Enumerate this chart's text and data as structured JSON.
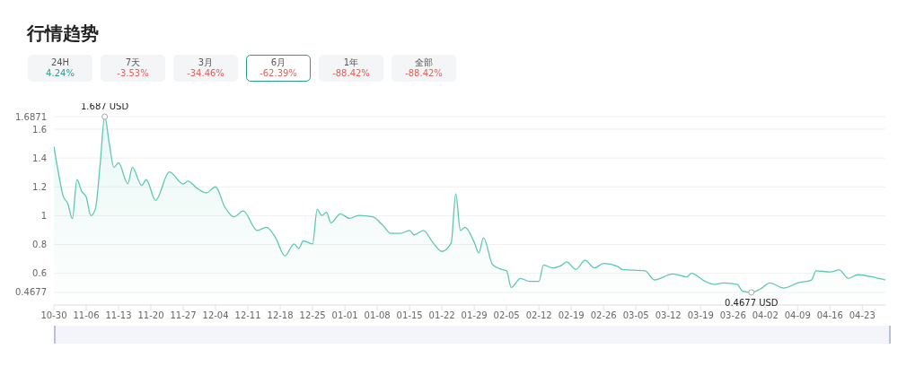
{
  "chart_data": {
    "type": "area",
    "title": "行情趋势",
    "color": "#5cc8b4",
    "categories": [
      "10-30",
      null,
      null,
      null,
      null,
      null,
      null,
      "11-06",
      null,
      null,
      null,
      null,
      null,
      null,
      "11-13",
      null,
      null,
      null,
      null,
      null,
      null,
      "11-20",
      null,
      null,
      null,
      null,
      null,
      null,
      "11-27",
      null,
      null,
      null,
      null,
      null,
      null,
      "12-04",
      null,
      null,
      null,
      null,
      null,
      null,
      "12-11",
      null,
      null,
      null,
      null,
      null,
      null,
      "12-18",
      null,
      null,
      null,
      null,
      null,
      null,
      "12-25",
      null,
      null,
      null,
      null,
      null,
      null,
      "01-01",
      null,
      null,
      null,
      null,
      null,
      null,
      "01-08",
      null,
      null,
      null,
      null,
      null,
      null,
      "01-15",
      null,
      null,
      null,
      null,
      null,
      null,
      "01-22",
      null,
      null,
      null,
      null,
      null,
      null,
      "01-29",
      null,
      null,
      null,
      null,
      null,
      null,
      "02-05",
      null,
      null,
      null,
      null,
      null,
      null,
      "02-12",
      null,
      null,
      null,
      null,
      null,
      null,
      "02-19",
      null,
      null,
      null,
      null,
      null,
      null,
      "02-26",
      null,
      null,
      null,
      null,
      null,
      null,
      "03-05",
      null,
      null,
      null,
      null,
      null,
      null,
      "03-12",
      null,
      null,
      null,
      null,
      null,
      null,
      "03-19",
      null,
      null,
      null,
      null,
      null,
      null,
      "03-26",
      null,
      null,
      null,
      null,
      null,
      null,
      "04-02",
      null,
      null,
      null,
      null,
      null,
      null,
      "04-09",
      null,
      null,
      null,
      null,
      null,
      null,
      "04-16",
      null,
      null,
      null,
      null,
      null,
      null,
      "04-23",
      null,
      null,
      null,
      null,
      null
    ],
    "values": [
      1.481,
      1.294,
      1.137,
      1.085,
      0.98,
      1.25,
      1.17,
      1.13,
      1.0,
      1.05,
      1.35,
      1.687,
      1.5,
      1.335,
      1.367,
      null,
      1.221,
      1.335,
      null,
      1.21,
      1.25,
      null,
      1.106,
      null,
      null,
      1.304,
      null,
      null,
      1.22,
      1.24,
      null,
      1.19,
      null,
      1.158,
      null,
      1.2,
      null,
      1.06,
      null,
      0.992,
      null,
      1.033,
      null,
      null,
      0.898,
      null,
      0.919,
      null,
      0.846,
      null,
      0.721,
      null,
      0.804,
      0.773,
      0.825,
      null,
      0.804,
      1.044,
      1.002,
      1.023,
      0.95,
      null,
      1.013,
      null,
      0.981,
      null,
      1.002,
      null,
      null,
      0.992,
      null,
      0.94,
      null,
      0.877,
      null,
      0.877,
      null,
      0.898,
      0.867,
      null,
      0.898,
      null,
      0.815,
      null,
      0.752,
      null,
      0.81,
      1.152,
      0.898,
      0.919,
      null,
      0.815,
      0.742,
      0.846,
      null,
      0.658,
      null,
      0.627,
      0.617,
      0.502,
      null,
      0.565,
      null,
      0.544,
      null,
      0.544,
      0.658,
      null,
      0.637,
      null,
      0.658,
      0.679,
      null,
      0.627,
      null,
      0.69,
      null,
      0.637,
      null,
      0.669,
      null,
      null,
      0.648,
      0.627,
      null,
      null,
      null,
      null,
      0.617,
      null,
      0.554,
      null,
      null,
      null,
      0.596,
      null,
      null,
      0.575,
      0.6,
      null,
      null,
      0.544,
      null,
      0.523,
      null,
      0.533,
      null,
      null,
      0.523,
      0.477,
      null,
      0.4677,
      null,
      0.492,
      null,
      0.533,
      null,
      null,
      0.498,
      null,
      null,
      0.533,
      null,
      null,
      0.554,
      0.617,
      null,
      null,
      0.61,
      null,
      0.623,
      null,
      0.565,
      null,
      0.59,
      null,
      null,
      null,
      0.569,
      null,
      0.554
    ],
    "ylim": [
      0.38,
      1.6871
    ],
    "yticks": [
      0.4677,
      0.6,
      0.8,
      1,
      1.2,
      1.4,
      1.6,
      1.6871
    ],
    "grid": "y",
    "annotations": [
      "24H",
      "4.24%",
      "7天",
      "-3.53%",
      "3月",
      "-34.46%",
      "6月",
      "-62.39%",
      "1年",
      "-88.42%",
      "全部",
      "-88.42%",
      {
        "text": "1.687 USD",
        "y": 1.687
      },
      {
        "text": "0.4677 USD",
        "y": 0.4677
      }
    ]
  }
}
